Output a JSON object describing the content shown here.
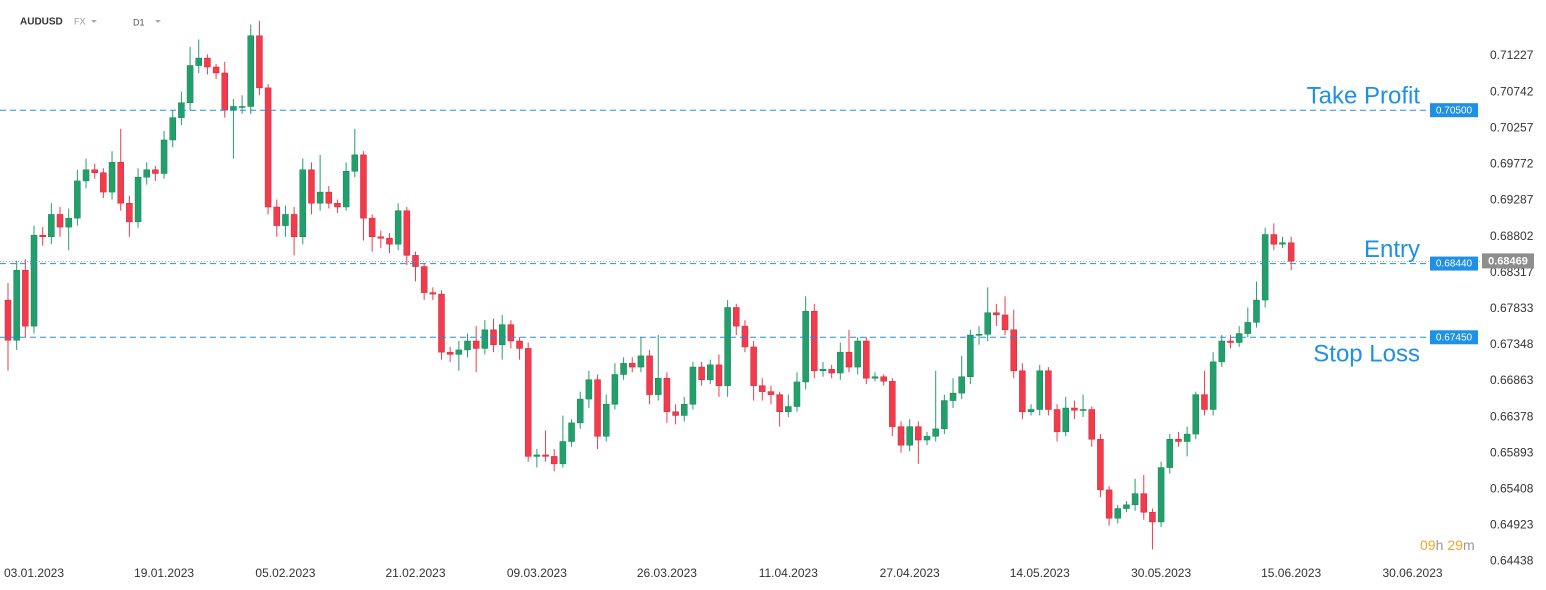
{
  "header": {
    "symbol": "AUDUSD",
    "market": "FX",
    "interval": "D1"
  },
  "timer": {
    "hours": "09",
    "h": "h",
    "minutes": "29",
    "m": "m"
  },
  "chart_data": {
    "type": "candlestick",
    "up_color": "#22a06b",
    "down_color": "#f23b4c",
    "ylim": [
      0.6419,
      0.7198
    ],
    "yticks": [
      0.71227,
      0.70742,
      0.70257,
      0.69772,
      0.69287,
      0.68802,
      0.68317,
      0.67833,
      0.67348,
      0.66863,
      0.66378,
      0.65893,
      0.65408,
      0.64923,
      0.64438
    ],
    "categories": [
      null,
      null,
      null,
      "03.01.2023",
      null,
      null,
      null,
      null,
      null,
      null,
      null,
      null,
      null,
      null,
      null,
      null,
      null,
      null,
      "19.01.2023",
      null,
      null,
      null,
      null,
      null,
      null,
      null,
      null,
      null,
      null,
      null,
      null,
      null,
      "05.02.2023",
      null,
      null,
      null,
      null,
      null,
      null,
      null,
      null,
      null,
      null,
      null,
      null,
      null,
      null,
      "21.02.2023",
      null,
      null,
      null,
      null,
      null,
      null,
      null,
      null,
      null,
      null,
      null,
      null,
      null,
      "09.03.2023",
      null,
      null,
      null,
      null,
      null,
      null,
      null,
      null,
      null,
      null,
      null,
      null,
      null,
      null,
      "26.03.2023",
      null,
      null,
      null,
      null,
      null,
      null,
      null,
      null,
      null,
      null,
      null,
      null,
      null,
      "11.04.2023",
      null,
      null,
      null,
      null,
      null,
      null,
      null,
      null,
      null,
      null,
      null,
      null,
      null,
      "27.04.2023",
      null,
      null,
      null,
      null,
      null,
      null,
      null,
      null,
      null,
      null,
      null,
      null,
      null,
      null,
      "14.05.2023",
      null,
      null,
      null,
      null,
      null,
      null,
      null,
      null,
      null,
      null,
      null,
      null,
      null,
      "30.05.2023",
      null,
      null,
      null,
      null,
      null,
      null,
      null,
      null,
      null,
      null,
      null,
      null,
      null,
      null,
      "15.06.2023",
      null,
      null,
      null,
      null,
      null,
      null,
      null,
      null,
      null,
      null,
      null,
      null,
      null,
      "30.06.2023"
    ],
    "candles": [
      [
        0.6795,
        0.6818,
        0.67,
        0.6741
      ],
      [
        0.6741,
        0.6848,
        0.6728,
        0.6835
      ],
      [
        0.6835,
        0.685,
        0.6745,
        0.676
      ],
      [
        0.676,
        0.6895,
        0.675,
        0.6882
      ],
      [
        0.6882,
        0.6893,
        0.6868,
        0.688
      ],
      [
        0.688,
        0.6925,
        0.687,
        0.691
      ],
      [
        0.691,
        0.692,
        0.688,
        0.6893
      ],
      [
        0.6893,
        0.6918,
        0.6862,
        0.6905
      ],
      [
        0.6905,
        0.697,
        0.6895,
        0.6955
      ],
      [
        0.6955,
        0.6985,
        0.6945,
        0.697
      ],
      [
        0.697,
        0.6978,
        0.6958,
        0.6966
      ],
      [
        0.6966,
        0.6972,
        0.6932,
        0.694
      ],
      [
        0.694,
        0.6995,
        0.693,
        0.698
      ],
      [
        0.698,
        0.7025,
        0.6915,
        0.6925
      ],
      [
        0.6925,
        0.6935,
        0.688,
        0.69
      ],
      [
        0.69,
        0.6972,
        0.6892,
        0.696
      ],
      [
        0.696,
        0.698,
        0.695,
        0.697
      ],
      [
        0.697,
        0.6975,
        0.6955,
        0.6965
      ],
      [
        0.6965,
        0.7022,
        0.6958,
        0.701
      ],
      [
        0.701,
        0.705,
        0.7,
        0.704
      ],
      [
        0.704,
        0.7075,
        0.703,
        0.706
      ],
      [
        0.706,
        0.7135,
        0.705,
        0.711
      ],
      [
        0.711,
        0.7145,
        0.71,
        0.712
      ],
      [
        0.712,
        0.7125,
        0.7098,
        0.7108
      ],
      [
        0.7108,
        0.7112,
        0.7092,
        0.71
      ],
      [
        0.71,
        0.7115,
        0.704,
        0.705
      ],
      [
        0.705,
        0.7065,
        0.6985,
        0.7055
      ],
      [
        0.7055,
        0.707,
        0.7045,
        0.7055
      ],
      [
        0.7055,
        0.7165,
        0.7045,
        0.715
      ],
      [
        0.715,
        0.717,
        0.707,
        0.708
      ],
      [
        0.708,
        0.7085,
        0.691,
        0.692
      ],
      [
        0.692,
        0.693,
        0.688,
        0.6895
      ],
      [
        0.6895,
        0.6922,
        0.688,
        0.691
      ],
      [
        0.691,
        0.692,
        0.6855,
        0.688
      ],
      [
        0.688,
        0.6985,
        0.687,
        0.697
      ],
      [
        0.697,
        0.698,
        0.691,
        0.6925
      ],
      [
        0.6925,
        0.699,
        0.6915,
        0.694
      ],
      [
        0.694,
        0.6948,
        0.6918,
        0.6925
      ],
      [
        0.6925,
        0.693,
        0.6912,
        0.692
      ],
      [
        0.692,
        0.698,
        0.6915,
        0.6968
      ],
      [
        0.6968,
        0.7025,
        0.696,
        0.699
      ],
      [
        0.699,
        0.6995,
        0.6875,
        0.6905
      ],
      [
        0.6905,
        0.691,
        0.686,
        0.688
      ],
      [
        0.688,
        0.6888,
        0.6865,
        0.6878
      ],
      [
        0.6878,
        0.6885,
        0.6858,
        0.687
      ],
      [
        0.687,
        0.6925,
        0.6862,
        0.6915
      ],
      [
        0.6915,
        0.692,
        0.6842,
        0.6855
      ],
      [
        0.6855,
        0.686,
        0.682,
        0.684
      ],
      [
        0.684,
        0.6845,
        0.6795,
        0.6805
      ],
      [
        0.6805,
        0.6812,
        0.6795,
        0.6803
      ],
      [
        0.6803,
        0.6808,
        0.6715,
        0.6725
      ],
      [
        0.6725,
        0.6732,
        0.6712,
        0.6722
      ],
      [
        0.6722,
        0.674,
        0.67,
        0.6728
      ],
      [
        0.6728,
        0.675,
        0.6718,
        0.674
      ],
      [
        0.674,
        0.676,
        0.6698,
        0.673
      ],
      [
        0.673,
        0.6768,
        0.6722,
        0.6755
      ],
      [
        0.6755,
        0.677,
        0.6725,
        0.6735
      ],
      [
        0.6735,
        0.6775,
        0.6715,
        0.6762
      ],
      [
        0.6762,
        0.6768,
        0.673,
        0.674
      ],
      [
        0.674,
        0.6745,
        0.6715,
        0.673
      ],
      [
        0.673,
        0.6738,
        0.6578,
        0.6585
      ],
      [
        0.6585,
        0.6595,
        0.657,
        0.6587
      ],
      [
        0.6587,
        0.662,
        0.6578,
        0.6585
      ],
      [
        0.6585,
        0.6595,
        0.6565,
        0.6575
      ],
      [
        0.6575,
        0.664,
        0.657,
        0.6605
      ],
      [
        0.6605,
        0.6635,
        0.6598,
        0.663
      ],
      [
        0.663,
        0.6672,
        0.6622,
        0.6662
      ],
      [
        0.6662,
        0.67,
        0.665,
        0.6688
      ],
      [
        0.6688,
        0.6695,
        0.6595,
        0.6612
      ],
      [
        0.6612,
        0.6668,
        0.6605,
        0.6655
      ],
      [
        0.6655,
        0.671,
        0.6648,
        0.6695
      ],
      [
        0.6695,
        0.6718,
        0.6688,
        0.671
      ],
      [
        0.671,
        0.6718,
        0.6698,
        0.6705
      ],
      [
        0.6705,
        0.6745,
        0.6698,
        0.672
      ],
      [
        0.672,
        0.6728,
        0.6655,
        0.6668
      ],
      [
        0.6668,
        0.6748,
        0.666,
        0.669
      ],
      [
        0.669,
        0.6698,
        0.663,
        0.6645
      ],
      [
        0.6645,
        0.6655,
        0.6628,
        0.664
      ],
      [
        0.664,
        0.6665,
        0.6632,
        0.6655
      ],
      [
        0.6655,
        0.6712,
        0.6648,
        0.6705
      ],
      [
        0.6705,
        0.6712,
        0.668,
        0.6688
      ],
      [
        0.6688,
        0.6715,
        0.6682,
        0.6708
      ],
      [
        0.6708,
        0.6722,
        0.6665,
        0.668
      ],
      [
        0.668,
        0.6795,
        0.6665,
        0.6785
      ],
      [
        0.6785,
        0.679,
        0.6748,
        0.676
      ],
      [
        0.676,
        0.6768,
        0.6725,
        0.6732
      ],
      [
        0.6732,
        0.674,
        0.666,
        0.668
      ],
      [
        0.668,
        0.669,
        0.666,
        0.6672
      ],
      [
        0.6672,
        0.668,
        0.6655,
        0.6668
      ],
      [
        0.6668,
        0.6672,
        0.6625,
        0.6645
      ],
      [
        0.6645,
        0.6668,
        0.6638,
        0.6652
      ],
      [
        0.6652,
        0.6698,
        0.6645,
        0.6685
      ],
      [
        0.6685,
        0.68,
        0.6675,
        0.678
      ],
      [
        0.678,
        0.679,
        0.669,
        0.67
      ],
      [
        0.67,
        0.6712,
        0.6692,
        0.6702
      ],
      [
        0.6702,
        0.6708,
        0.669,
        0.6697
      ],
      [
        0.6697,
        0.6738,
        0.6688,
        0.6725
      ],
      [
        0.6725,
        0.6755,
        0.6698,
        0.6705
      ],
      [
        0.6705,
        0.6745,
        0.6695,
        0.674
      ],
      [
        0.674,
        0.6745,
        0.6682,
        0.669
      ],
      [
        0.669,
        0.6698,
        0.6686,
        0.6692
      ],
      [
        0.6692,
        0.6695,
        0.668,
        0.6686
      ],
      [
        0.6686,
        0.669,
        0.6612,
        0.6625
      ],
      [
        0.6625,
        0.6632,
        0.659,
        0.66
      ],
      [
        0.66,
        0.6635,
        0.6592,
        0.6625
      ],
      [
        0.6625,
        0.6632,
        0.6575,
        0.6607
      ],
      [
        0.6607,
        0.6618,
        0.66,
        0.6612
      ],
      [
        0.6612,
        0.67,
        0.6605,
        0.6622
      ],
      [
        0.6622,
        0.6668,
        0.6615,
        0.666
      ],
      [
        0.666,
        0.669,
        0.665,
        0.667
      ],
      [
        0.667,
        0.672,
        0.6662,
        0.6692
      ],
      [
        0.6692,
        0.6755,
        0.6682,
        0.6748
      ],
      [
        0.6748,
        0.676,
        0.6735,
        0.6749
      ],
      [
        0.6749,
        0.6812,
        0.674,
        0.6778
      ],
      [
        0.6778,
        0.679,
        0.676,
        0.6775
      ],
      [
        0.6775,
        0.68,
        0.6748,
        0.6755
      ],
      [
        0.6755,
        0.6782,
        0.669,
        0.67
      ],
      [
        0.67,
        0.671,
        0.6635,
        0.6645
      ],
      [
        0.6645,
        0.6655,
        0.664,
        0.6648
      ],
      [
        0.6648,
        0.6708,
        0.664,
        0.67
      ],
      [
        0.67,
        0.6705,
        0.664,
        0.6648
      ],
      [
        0.6648,
        0.6655,
        0.6605,
        0.6618
      ],
      [
        0.6618,
        0.6665,
        0.6612,
        0.665
      ],
      [
        0.665,
        0.666,
        0.6635,
        0.6647
      ],
      [
        0.6647,
        0.6668,
        0.6638,
        0.6648
      ],
      [
        0.6648,
        0.6652,
        0.6598,
        0.6608
      ],
      [
        0.6608,
        0.6615,
        0.653,
        0.654
      ],
      [
        0.654,
        0.6545,
        0.6492,
        0.6502
      ],
      [
        0.6502,
        0.652,
        0.6495,
        0.6515
      ],
      [
        0.6515,
        0.6525,
        0.651,
        0.652
      ],
      [
        0.652,
        0.6555,
        0.6512,
        0.6535
      ],
      [
        0.6535,
        0.656,
        0.65,
        0.651
      ],
      [
        0.651,
        0.6515,
        0.646,
        0.6497
      ],
      [
        0.6497,
        0.6578,
        0.649,
        0.657
      ],
      [
        0.657,
        0.6615,
        0.6562,
        0.6608
      ],
      [
        0.6608,
        0.6618,
        0.6598,
        0.6605
      ],
      [
        0.6605,
        0.6625,
        0.6585,
        0.6615
      ],
      [
        0.6615,
        0.6672,
        0.6608,
        0.6668
      ],
      [
        0.6668,
        0.67,
        0.664,
        0.6648
      ],
      [
        0.6648,
        0.6725,
        0.664,
        0.6712
      ],
      [
        0.6712,
        0.6748,
        0.6705,
        0.674
      ],
      [
        0.674,
        0.6748,
        0.673,
        0.6738
      ],
      [
        0.6738,
        0.676,
        0.6732,
        0.675
      ],
      [
        0.675,
        0.6785,
        0.6745,
        0.6765
      ],
      [
        0.6765,
        0.682,
        0.6758,
        0.6795
      ],
      [
        0.6795,
        0.6892,
        0.6785,
        0.6883
      ],
      [
        0.6883,
        0.6898,
        0.6862,
        0.687
      ],
      [
        0.687,
        0.688,
        0.6865,
        0.6872
      ],
      [
        0.6872,
        0.688,
        0.6835,
        0.6847
      ],
      null,
      null,
      null,
      null,
      null,
      null,
      null,
      null,
      null,
      null,
      null,
      null,
      null,
      null
    ],
    "levels": [
      {
        "name": "Take Profit",
        "value": 0.705,
        "label": "0.70500",
        "color": "#1e90e6",
        "label_position": "above"
      },
      {
        "name": "Entry",
        "value": 0.6844,
        "label": "0.68440",
        "color": "#1e90e6",
        "label_position": "above"
      },
      {
        "name": "Stop Loss",
        "value": 0.6745,
        "label": "0.67450",
        "color": "#1e90e6",
        "label_position": "below"
      }
    ],
    "current_price": {
      "value": 0.68469,
      "color": "#8e8e8e"
    }
  }
}
